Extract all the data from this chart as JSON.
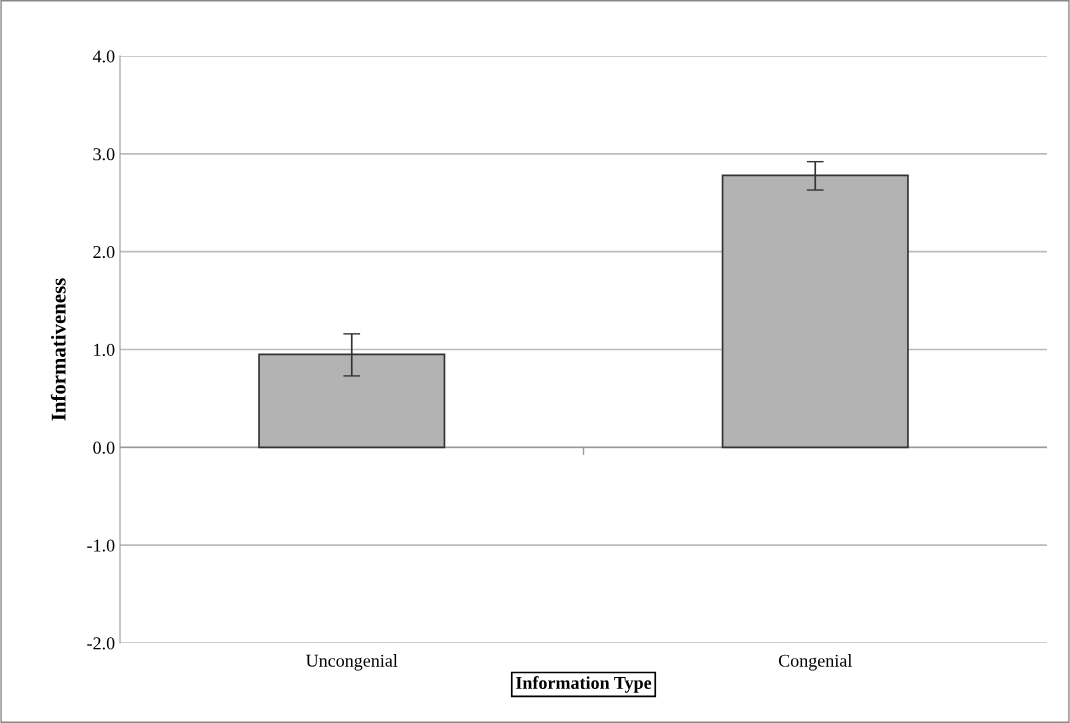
{
  "chart_data": {
    "type": "bar",
    "xlabel": "Information Type",
    "ylabel": "Informativeness",
    "categories": [
      "Uncongenial",
      "Congenial"
    ],
    "values": [
      0.95,
      2.78
    ],
    "errors": [
      [
        0.73,
        1.16
      ],
      [
        2.63,
        2.92
      ]
    ],
    "color": "#b3b3b3",
    "ylim": [
      -2,
      4
    ],
    "yticks": [
      {
        "value": -2,
        "label": "-2.0"
      },
      {
        "value": -1,
        "label": "-1.0"
      },
      {
        "value": 0,
        "label": "0.0"
      },
      {
        "value": 1,
        "label": "1.0"
      },
      {
        "value": 2,
        "label": "2.0"
      },
      {
        "value": 3,
        "label": "3.0"
      },
      {
        "value": 4,
        "label": "4.0"
      }
    ],
    "grid": "y",
    "legend": false
  }
}
